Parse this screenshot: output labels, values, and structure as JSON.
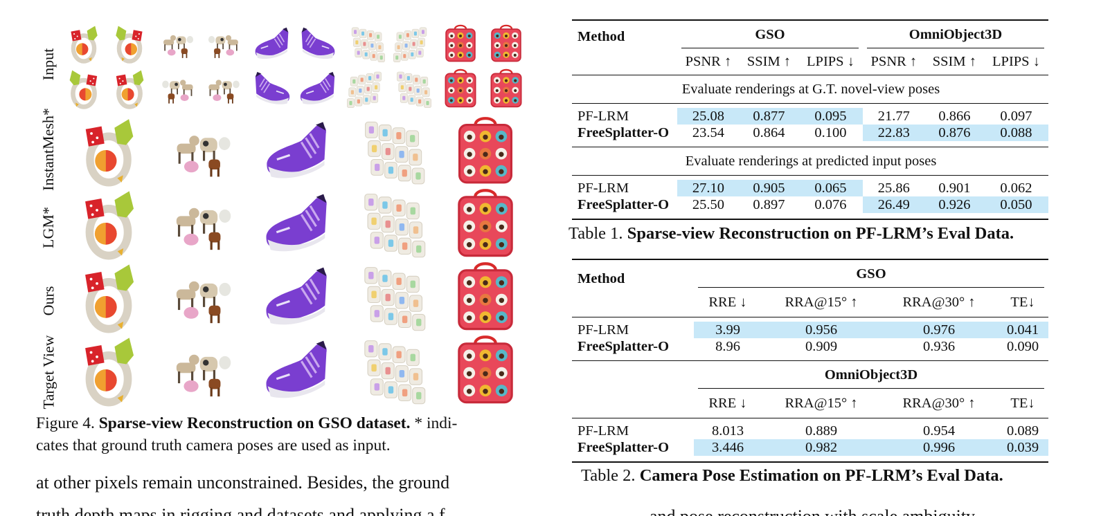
{
  "figure": {
    "row_labels": [
      "Input",
      "InstantMesh*",
      "LGM*",
      "Ours",
      "Target View"
    ],
    "objects": [
      "toy-rattle",
      "animal-figurines",
      "purple-sneaker",
      "alphabet-tiles",
      "red-lunch-bag"
    ],
    "caption_label": "Figure 4.",
    "caption_bold": "Sparse-view Reconstruction on GSO dataset.",
    "caption_rest": " * indi-cates that ground truth camera poses are used as input.",
    "caption_line1_rest": " * indi-",
    "caption_line2": "cates that ground truth camera poses are used as input."
  },
  "body_text": {
    "left_line1": "at other pixels remain unconstrained.  Besides, the ground",
    "left_line2_partial": "truth depth maps in rigging and datasets and applying a f",
    "right_line_partial": "and pose reconstruction with scale ambiguity"
  },
  "colors": {
    "highlight": "#c8e8f8"
  },
  "table1": {
    "caption_label": "Table 1.",
    "caption_bold": "Sparse-view Reconstruction on PF-LRM’s Eval Data.",
    "method_header": "Method",
    "groups": [
      "GSO",
      "OmniObject3D"
    ],
    "metrics": [
      "PSNR ↑",
      "SSIM ↑",
      "LPIPS ↓",
      "PSNR ↑",
      "SSIM ↑",
      "LPIPS ↓"
    ],
    "sections": [
      {
        "title": "Evaluate renderings at G.T. novel-view poses",
        "rows": [
          {
            "method": "PF-LRM",
            "bold": false,
            "values": [
              "25.08",
              "0.877",
              "0.095",
              "21.77",
              "0.866",
              "0.097"
            ],
            "highlight_groups": [
              "GSO"
            ]
          },
          {
            "method": "FreeSplatter-O",
            "bold": true,
            "values": [
              "23.54",
              "0.864",
              "0.100",
              "22.83",
              "0.876",
              "0.088"
            ],
            "highlight_groups": [
              "OmniObject3D"
            ]
          }
        ]
      },
      {
        "title": "Evaluate renderings at predicted input poses",
        "rows": [
          {
            "method": "PF-LRM",
            "bold": false,
            "values": [
              "27.10",
              "0.905",
              "0.065",
              "25.86",
              "0.901",
              "0.062"
            ],
            "highlight_groups": [
              "GSO"
            ]
          },
          {
            "method": "FreeSplatter-O",
            "bold": true,
            "values": [
              "25.50",
              "0.897",
              "0.076",
              "26.49",
              "0.926",
              "0.050"
            ],
            "highlight_groups": [
              "OmniObject3D"
            ]
          }
        ]
      }
    ]
  },
  "table2": {
    "caption_label": "Table 2.",
    "caption_bold": "Camera Pose Estimation on PF-LRM’s Eval Data.",
    "method_header": "Method",
    "metrics": [
      "RRE ↓",
      "RRA@15° ↑",
      "RRA@30° ↑",
      "TE↓"
    ],
    "sections": [
      {
        "dataset": "GSO",
        "rows": [
          {
            "method": "PF-LRM",
            "bold": false,
            "values": [
              "3.99",
              "0.956",
              "0.976",
              "0.041"
            ],
            "highlight": true
          },
          {
            "method": "FreeSplatter-O",
            "bold": true,
            "values": [
              "8.96",
              "0.909",
              "0.936",
              "0.090"
            ],
            "highlight": false
          }
        ]
      },
      {
        "dataset": "OmniObject3D",
        "rows": [
          {
            "method": "PF-LRM",
            "bold": false,
            "values": [
              "8.013",
              "0.889",
              "0.954",
              "0.089"
            ],
            "highlight": false
          },
          {
            "method": "FreeSplatter-O",
            "bold": true,
            "values": [
              "3.446",
              "0.982",
              "0.996",
              "0.039"
            ],
            "highlight": true
          }
        ]
      }
    ]
  }
}
